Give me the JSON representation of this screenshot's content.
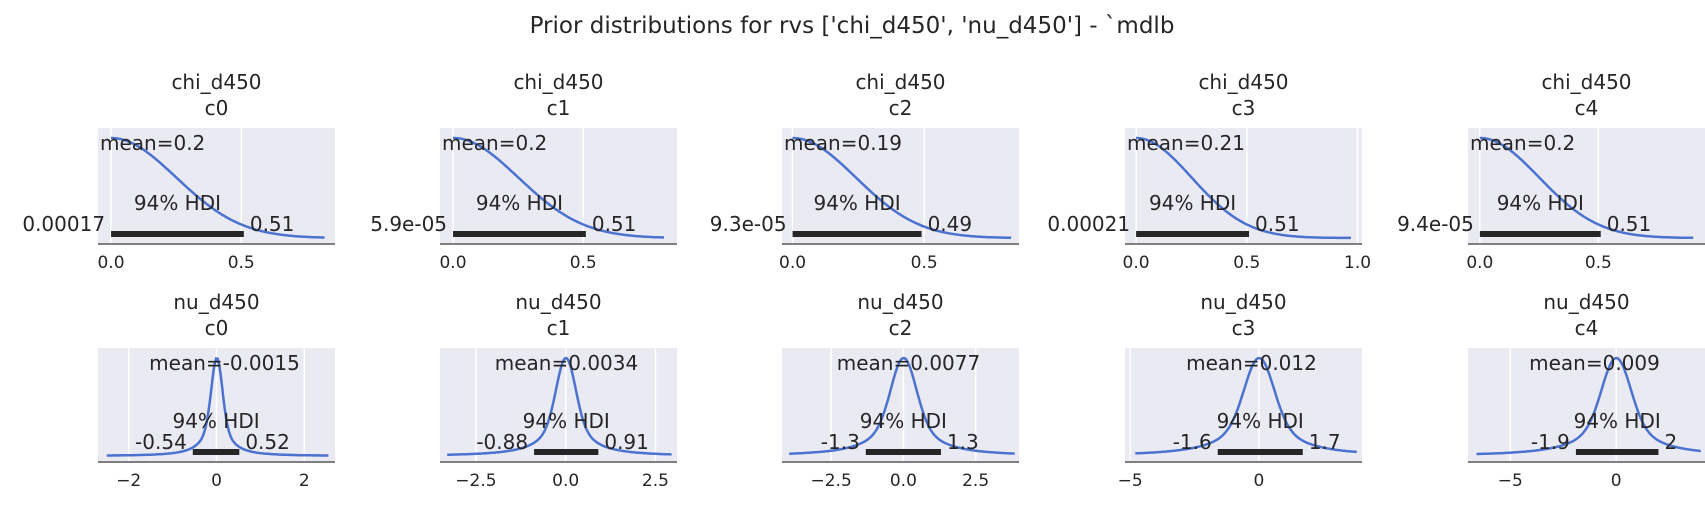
{
  "suptitle": "Prior distributions for rvs ['chi_d450', 'nu_d450'] - `mdlb",
  "colors": {
    "background": "#eaeaf2",
    "grid": "#ffffff",
    "curve": "#4c72d0",
    "hdi_bar": "#262626",
    "axis": "#7f7f7f",
    "text": "#262626"
  },
  "chart_data": [
    {
      "type": "line",
      "title": "chi_d450",
      "subtitle": "c0",
      "mean_label": "mean=0.2",
      "hdi_label": "94% HDI",
      "hdi_low": 0.00017,
      "hdi_high": 0.51,
      "hdi_low_label": "0.00017",
      "hdi_high_label": "0.51",
      "xlim": [
        -0.05,
        0.86
      ],
      "xticks": [
        0.0,
        0.5
      ],
      "xtick_labels": [
        "0.0",
        "0.5"
      ],
      "shape": "halfnormal",
      "scale": 0.25,
      "x_end": 0.82
    },
    {
      "type": "line",
      "title": "chi_d450",
      "subtitle": "c1",
      "mean_label": "mean=0.2",
      "hdi_label": "94% HDI",
      "hdi_low": 5.9e-05,
      "hdi_high": 0.51,
      "hdi_low_label": "5.9e-05",
      "hdi_high_label": "0.51",
      "xlim": [
        -0.05,
        0.86
      ],
      "xticks": [
        0.0,
        0.5
      ],
      "xtick_labels": [
        "0.0",
        "0.5"
      ],
      "shape": "halfnormal",
      "scale": 0.25,
      "x_end": 0.81
    },
    {
      "type": "line",
      "title": "chi_d450",
      "subtitle": "c2",
      "mean_label": "mean=0.19",
      "hdi_label": "94% HDI",
      "hdi_low": 9.3e-05,
      "hdi_high": 0.49,
      "hdi_low_label": "9.3e-05",
      "hdi_high_label": "0.49",
      "xlim": [
        -0.04,
        0.86
      ],
      "xticks": [
        0.0,
        0.5
      ],
      "xtick_labels": [
        "0.0",
        "0.5"
      ],
      "shape": "halfnormal",
      "scale": 0.24,
      "x_end": 0.83
    },
    {
      "type": "line",
      "title": "chi_d450",
      "subtitle": "c3",
      "mean_label": "mean=0.21",
      "hdi_label": "94% HDI",
      "hdi_low": 0.00021,
      "hdi_high": 0.51,
      "hdi_low_label": "0.00021",
      "hdi_high_label": "0.51",
      "xlim": [
        -0.05,
        1.02
      ],
      "xticks": [
        0.0,
        0.5,
        1.0
      ],
      "xtick_labels": [
        "0.0",
        "0.5",
        "1.0"
      ],
      "shape": "halfnormal",
      "scale": 0.25,
      "x_end": 0.97
    },
    {
      "type": "line",
      "title": "chi_d450",
      "subtitle": "c4",
      "mean_label": "mean=0.2",
      "hdi_label": "94% HDI",
      "hdi_low": 9.4e-05,
      "hdi_high": 0.51,
      "hdi_low_label": "9.4e-05",
      "hdi_high_label": "0.51",
      "xlim": [
        -0.05,
        0.95
      ],
      "xticks": [
        0.0,
        0.5
      ],
      "xtick_labels": [
        "0.0",
        "0.5"
      ],
      "shape": "halfnormal",
      "scale": 0.25,
      "x_end": 0.9
    },
    {
      "type": "line",
      "title": "nu_d450",
      "subtitle": "c0",
      "mean_label": "mean=-0.0015",
      "hdi_label": "94% HDI",
      "hdi_low": -0.54,
      "hdi_high": 0.52,
      "hdi_low_label": "-0.54",
      "hdi_high_label": "0.52",
      "xlim": [
        -2.7,
        2.7
      ],
      "xticks": [
        -2,
        0,
        2
      ],
      "xtick_labels": [
        "−2",
        "0",
        "2"
      ],
      "shape": "peaked",
      "scale": 0.12,
      "x_start": -2.5,
      "x_end": 2.55
    },
    {
      "type": "line",
      "title": "nu_d450",
      "subtitle": "c1",
      "mean_label": "mean=0.0034",
      "hdi_label": "94% HDI",
      "hdi_low": -0.88,
      "hdi_high": 0.91,
      "hdi_low_label": "-0.88",
      "hdi_high_label": "0.91",
      "xlim": [
        -3.5,
        3.1
      ],
      "xticks": [
        -2.5,
        0.0,
        2.5
      ],
      "xtick_labels": [
        "−2.5",
        "0.0",
        "2.5"
      ],
      "shape": "peaked",
      "scale": 0.26,
      "x_start": -3.3,
      "x_end": 2.95
    },
    {
      "type": "line",
      "title": "nu_d450",
      "subtitle": "c2",
      "mean_label": "mean=0.0077",
      "hdi_label": "94% HDI",
      "hdi_low": -1.3,
      "hdi_high": 1.3,
      "hdi_low_label": "-1.3",
      "hdi_high_label": "1.3",
      "xlim": [
        -4.2,
        4.0
      ],
      "xticks": [
        -2.5,
        0.0,
        2.5
      ],
      "xtick_labels": [
        "−2.5",
        "0.0",
        "2.5"
      ],
      "shape": "peaked",
      "scale": 0.42,
      "x_start": -3.95,
      "x_end": 3.85
    },
    {
      "type": "line",
      "title": "nu_d450",
      "subtitle": "c3",
      "mean_label": "mean=0.012",
      "hdi_label": "94% HDI",
      "hdi_low": -1.6,
      "hdi_high": 1.7,
      "hdi_low_label": "-1.6",
      "hdi_high_label": "1.7",
      "xlim": [
        -5.2,
        4.0
      ],
      "xticks": [
        -5,
        0
      ],
      "xtick_labels": [
        "−5",
        "0"
      ],
      "shape": "peaked",
      "scale": 0.55,
      "x_start": -4.8,
      "x_end": 3.8
    },
    {
      "type": "line",
      "title": "nu_d450",
      "subtitle": "c4",
      "mean_label": "mean=0.009",
      "hdi_label": "94% HDI",
      "hdi_low": -1.9,
      "hdi_high": 2.0,
      "hdi_low_label": "-1.9",
      "hdi_high_label": "2",
      "xlim": [
        -7.0,
        4.2
      ],
      "xticks": [
        -5,
        0
      ],
      "xtick_labels": [
        "−5",
        "0"
      ],
      "shape": "peaked",
      "scale": 0.65,
      "x_start": -6.6,
      "x_end": 4.0
    }
  ]
}
